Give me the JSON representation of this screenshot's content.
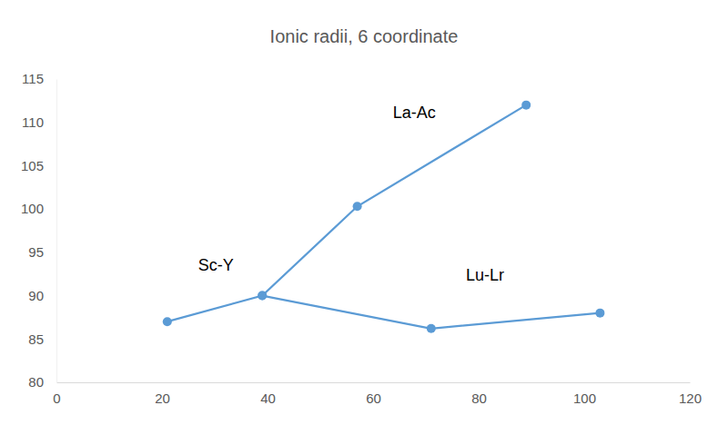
{
  "chart_data": {
    "type": "line",
    "title": "Ionic radii, 6 coordinate",
    "series": [
      {
        "x": [
          21,
          39,
          57,
          89
        ],
        "values": [
          87,
          90,
          100.3,
          112
        ],
        "color": "#5b9bd5",
        "marker": "circle"
      },
      {
        "x": [
          39,
          71,
          103
        ],
        "values": [
          90,
          86.2,
          88
        ],
        "color": "#5b9bd5",
        "marker": "circle"
      }
    ],
    "xlim": [
      0,
      120
    ],
    "xticks": [
      0,
      20,
      40,
      60,
      80,
      100,
      120
    ],
    "ylim": [
      80,
      115
    ],
    "yticks": [
      80,
      85,
      90,
      95,
      100,
      105,
      110,
      115
    ],
    "grid": false,
    "annotations": [
      {
        "text": "La-Ac",
        "x": 67.8,
        "y": 111
      },
      {
        "text": "Sc-Y",
        "x": 30.2,
        "y": 93.4
      },
      {
        "text": "Lu-Lr",
        "x": 81.2,
        "y": 92.2
      }
    ]
  }
}
